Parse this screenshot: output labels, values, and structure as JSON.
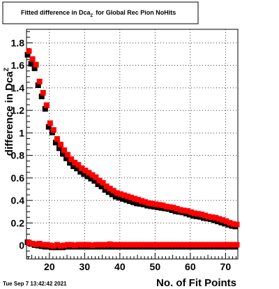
{
  "chart_data": {
    "type": "scatter",
    "title": "Fitted difference in Dca",
    "title_sub": "Z",
    "title_suffix": "for Global Rec Pion NoHits",
    "xlabel": "No. of Fit Points",
    "ylabel": "difference in Dca",
    "ylabel_sub": "Z",
    "xlim": [
      13.5,
      73.5
    ],
    "ylim": [
      -0.12,
      1.92
    ],
    "xticks": [
      20,
      30,
      40,
      50,
      60,
      70
    ],
    "yticks": [
      0,
      0.2,
      0.4,
      0.6,
      0.8,
      1,
      1.2,
      1.4,
      1.6,
      1.8
    ],
    "ytick_labels": [
      "0",
      "0.2",
      "0.4",
      "0.6",
      "0.8",
      "1",
      "1.2",
      "1.4",
      "1.6",
      "1.8"
    ],
    "grid": true,
    "x": [
      14,
      15,
      16,
      17,
      18,
      19,
      20,
      21,
      22,
      23,
      24,
      25,
      26,
      27,
      28,
      29,
      30,
      31,
      32,
      33,
      34,
      35,
      36,
      37,
      38,
      39,
      40,
      41,
      42,
      43,
      44,
      45,
      46,
      47,
      48,
      49,
      50,
      51,
      52,
      53,
      54,
      55,
      56,
      57,
      58,
      59,
      60,
      61,
      62,
      63,
      64,
      65,
      66,
      67,
      68,
      69,
      70,
      71,
      72,
      73
    ],
    "series": [
      {
        "color": "#000000",
        "role": "upper",
        "values": [
          1.7,
          1.62,
          1.58,
          1.43,
          1.33,
          1.22,
          1.06,
          1.01,
          0.92,
          0.87,
          0.82,
          0.78,
          0.74,
          0.71,
          0.69,
          0.66,
          0.64,
          0.62,
          0.6,
          0.58,
          0.55,
          0.53,
          0.5,
          0.48,
          0.46,
          0.44,
          0.43,
          0.42,
          0.41,
          0.4,
          0.39,
          0.38,
          0.375,
          0.37,
          0.36,
          0.355,
          0.35,
          0.345,
          0.34,
          0.335,
          0.33,
          0.32,
          0.31,
          0.305,
          0.3,
          0.29,
          0.28,
          0.27,
          0.265,
          0.26,
          0.25,
          0.245,
          0.24,
          0.23,
          0.22,
          0.21,
          0.2,
          0.19,
          0.18,
          0.175
        ]
      },
      {
        "color": "#ff0000",
        "role": "upper",
        "values": [
          1.72,
          1.65,
          1.6,
          1.45,
          1.35,
          1.24,
          1.08,
          1.02,
          0.94,
          0.89,
          0.84,
          0.8,
          0.76,
          0.73,
          0.71,
          0.68,
          0.66,
          0.64,
          0.62,
          0.6,
          0.57,
          0.55,
          0.52,
          0.5,
          0.48,
          0.46,
          0.45,
          0.44,
          0.43,
          0.42,
          0.41,
          0.4,
          0.39,
          0.38,
          0.37,
          0.365,
          0.36,
          0.355,
          0.35,
          0.34,
          0.335,
          0.33,
          0.32,
          0.31,
          0.305,
          0.3,
          0.29,
          0.28,
          0.275,
          0.27,
          0.26,
          0.25,
          0.245,
          0.24,
          0.23,
          0.22,
          0.21,
          0.195,
          0.185,
          0.18
        ]
      },
      {
        "color": "#000000",
        "role": "lower",
        "values": [
          0.035,
          0.02,
          0.01,
          0.005,
          0.0,
          -0.005,
          -0.005,
          -0.01,
          -0.01,
          -0.01,
          -0.01,
          -0.005,
          -0.005,
          -0.005,
          -0.005,
          -0.005,
          -0.005,
          -0.005,
          -0.005,
          -0.005,
          -0.005,
          -0.005,
          -0.005,
          -0.005,
          -0.005,
          -0.005,
          -0.005,
          -0.005,
          -0.005,
          -0.005,
          -0.005,
          -0.005,
          -0.005,
          -0.005,
          -0.005,
          -0.005,
          -0.005,
          -0.005,
          -0.005,
          -0.005,
          -0.005,
          -0.005,
          -0.005,
          -0.005,
          -0.005,
          -0.005,
          -0.005,
          -0.005,
          -0.005,
          -0.005,
          -0.005,
          -0.005,
          -0.005,
          -0.005,
          -0.005,
          -0.005,
          -0.005,
          -0.005,
          -0.005,
          -0.005
        ]
      },
      {
        "color": "#ff0000",
        "role": "lower",
        "values": [
          0.02,
          0.01,
          0.005,
          0.01,
          0.0,
          0.0,
          -0.005,
          -0.01,
          0.0,
          -0.01,
          -0.005,
          0.0,
          0.0,
          -0.005,
          0.0,
          0.0,
          0.0,
          0.0,
          -0.005,
          0.0,
          0.0,
          0.0,
          0.0,
          0.005,
          0.0,
          0.0,
          0.0,
          0.0,
          0.0,
          0.0,
          0.0,
          0.0,
          0.0,
          0.0,
          0.0,
          0.0,
          0.0,
          0.0,
          0.0,
          0.0,
          0.0,
          0.0,
          0.0,
          0.0,
          0.0,
          0.0,
          0.0,
          0.0,
          0.0,
          0.0,
          0.0,
          0.0,
          0.0,
          0.0,
          0.0,
          0.0,
          0.0,
          0.0,
          0.0,
          0.0
        ]
      }
    ]
  },
  "footer": {
    "timestamp": "Tue Sep  7 13:42:42 2021"
  }
}
